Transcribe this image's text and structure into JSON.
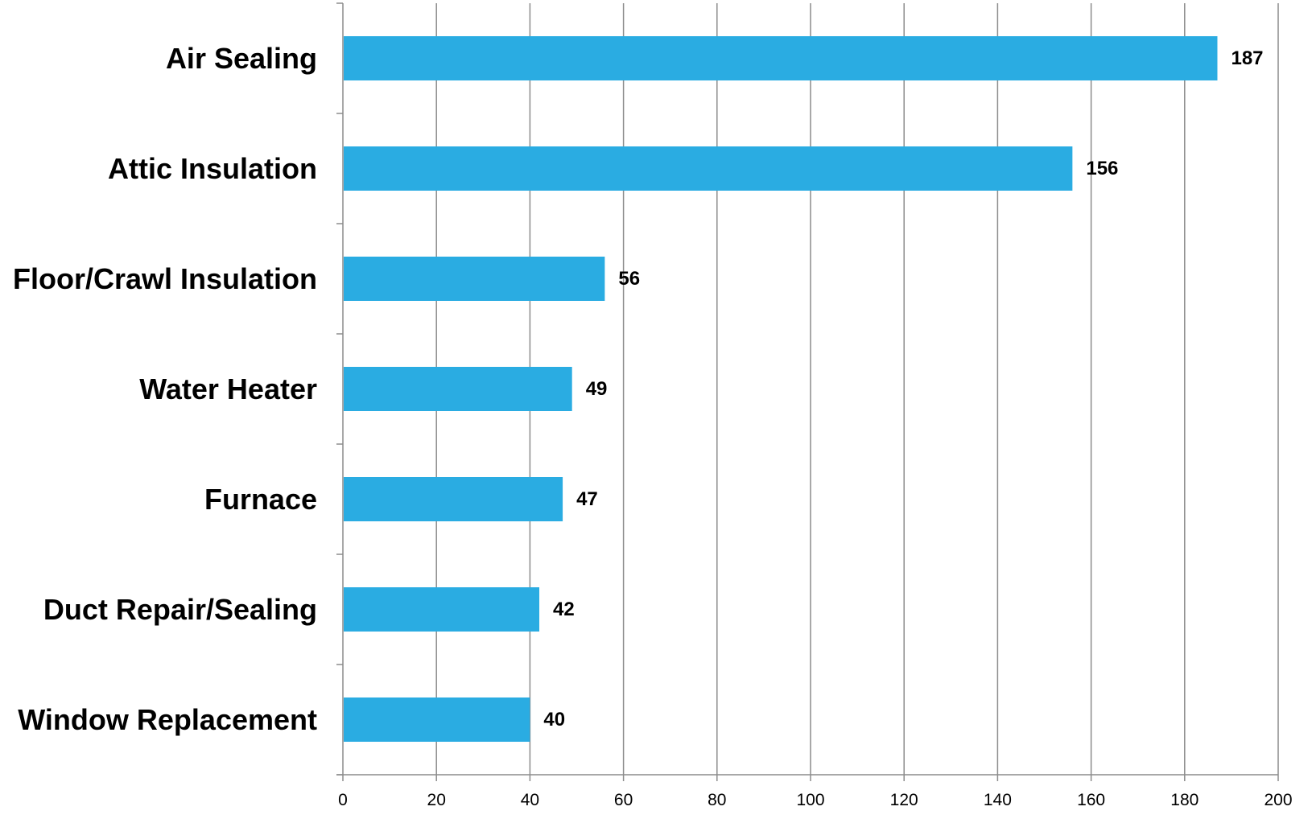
{
  "chart_data": {
    "type": "bar",
    "orientation": "horizontal",
    "title": "",
    "xlabel": "",
    "ylabel": "",
    "categories": [
      "Air Sealing",
      "Attic Insulation",
      "Floor/Crawl Insulation",
      "Water Heater",
      "Furnace",
      "Duct Repair/Sealing",
      "Window Replacement"
    ],
    "values": [
      187,
      156,
      56,
      49,
      47,
      42,
      40
    ],
    "data_labels": [
      "187",
      "156",
      "56",
      "49",
      "47",
      "42",
      "40"
    ],
    "xlim": [
      0,
      200
    ],
    "x_ticks": [
      0,
      20,
      40,
      60,
      80,
      100,
      120,
      140,
      160,
      180,
      200
    ],
    "x_tick_labels": [
      "0",
      "20",
      "40",
      "60",
      "80",
      "100",
      "120",
      "140",
      "160",
      "180",
      "200"
    ],
    "grid": "vertical",
    "legend": "none",
    "bar_color": "#2aace2",
    "grid_color": "#8c8c8c",
    "axis_color": "#8c8c8c"
  }
}
